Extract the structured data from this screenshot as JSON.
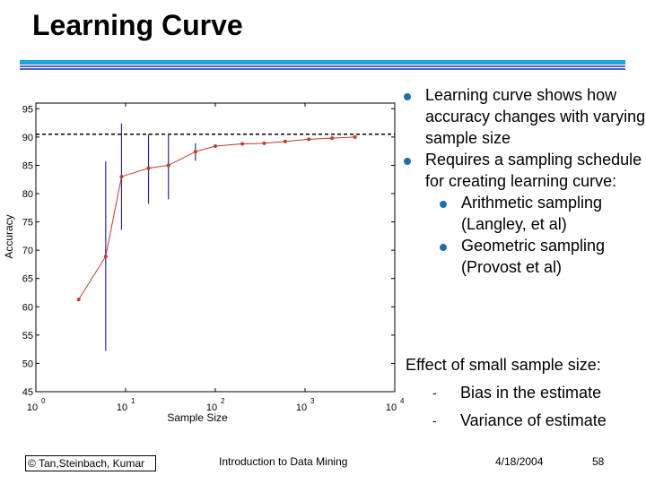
{
  "slide": {
    "title": "Learning Curve",
    "bullets": [
      {
        "text": "Learning curve shows how accuracy changes with varying sample size"
      },
      {
        "text": "Requires a sampling schedule for creating learning curve:"
      }
    ],
    "sub_bullets": [
      {
        "text": "Arithmetic sampling (Langley, et al)"
      },
      {
        "text": "Geometric sampling (Provost et al)"
      }
    ],
    "effect_heading": "Effect of small sample size:",
    "effect_items": [
      {
        "dash": "-",
        "text": "Bias in the estimate"
      },
      {
        "dash": "-",
        "text": "Variance of estimate"
      }
    ]
  },
  "footer": {
    "copyright": "© Tan,Steinbach, Kumar",
    "course": "Introduction to Data Mining",
    "date": "4/18/2004",
    "page": "58"
  },
  "colors": {
    "rule_cyan": "#1aa6d9",
    "rule_purple": "#7a5ab8",
    "rule_blue": "#3a6fc4",
    "bullet": "#1f6fa8",
    "curve": "#c0392b",
    "error_bar": "#2a2aa0"
  },
  "chart_data": {
    "type": "line",
    "xlabel": "Sample Size",
    "ylabel": "Accuracy",
    "xscale": "log",
    "xlim": [
      1,
      10000
    ],
    "ylim": [
      45,
      96
    ],
    "x_ticks": [
      {
        "base": "10",
        "exp": "0"
      },
      {
        "base": "10",
        "exp": "1"
      },
      {
        "base": "10",
        "exp": "2"
      },
      {
        "base": "10",
        "exp": "3"
      },
      {
        "base": "10",
        "exp": "4"
      }
    ],
    "y_ticks": [
      "45",
      "50",
      "55",
      "60",
      "65",
      "70",
      "75",
      "80",
      "85",
      "90",
      "95"
    ],
    "reference_line": 90.5,
    "series": [
      {
        "x": [
          3,
          6,
          9,
          18,
          30,
          60,
          100,
          200,
          350,
          600,
          1100,
          2000,
          3600
        ],
        "y": [
          61.3,
          68.9,
          83.0,
          84.5,
          85.0,
          87.4,
          88.4,
          88.8,
          88.9,
          89.2,
          89.6,
          89.8,
          90.0
        ],
        "err_low": [
          null,
          52.2,
          73.6,
          78.2,
          79.0,
          85.8,
          null,
          null,
          null,
          null,
          null,
          null,
          null
        ],
        "err_high": [
          null,
          85.7,
          92.4,
          90.5,
          90.6,
          88.9,
          null,
          null,
          null,
          null,
          null,
          null,
          null
        ]
      }
    ]
  }
}
